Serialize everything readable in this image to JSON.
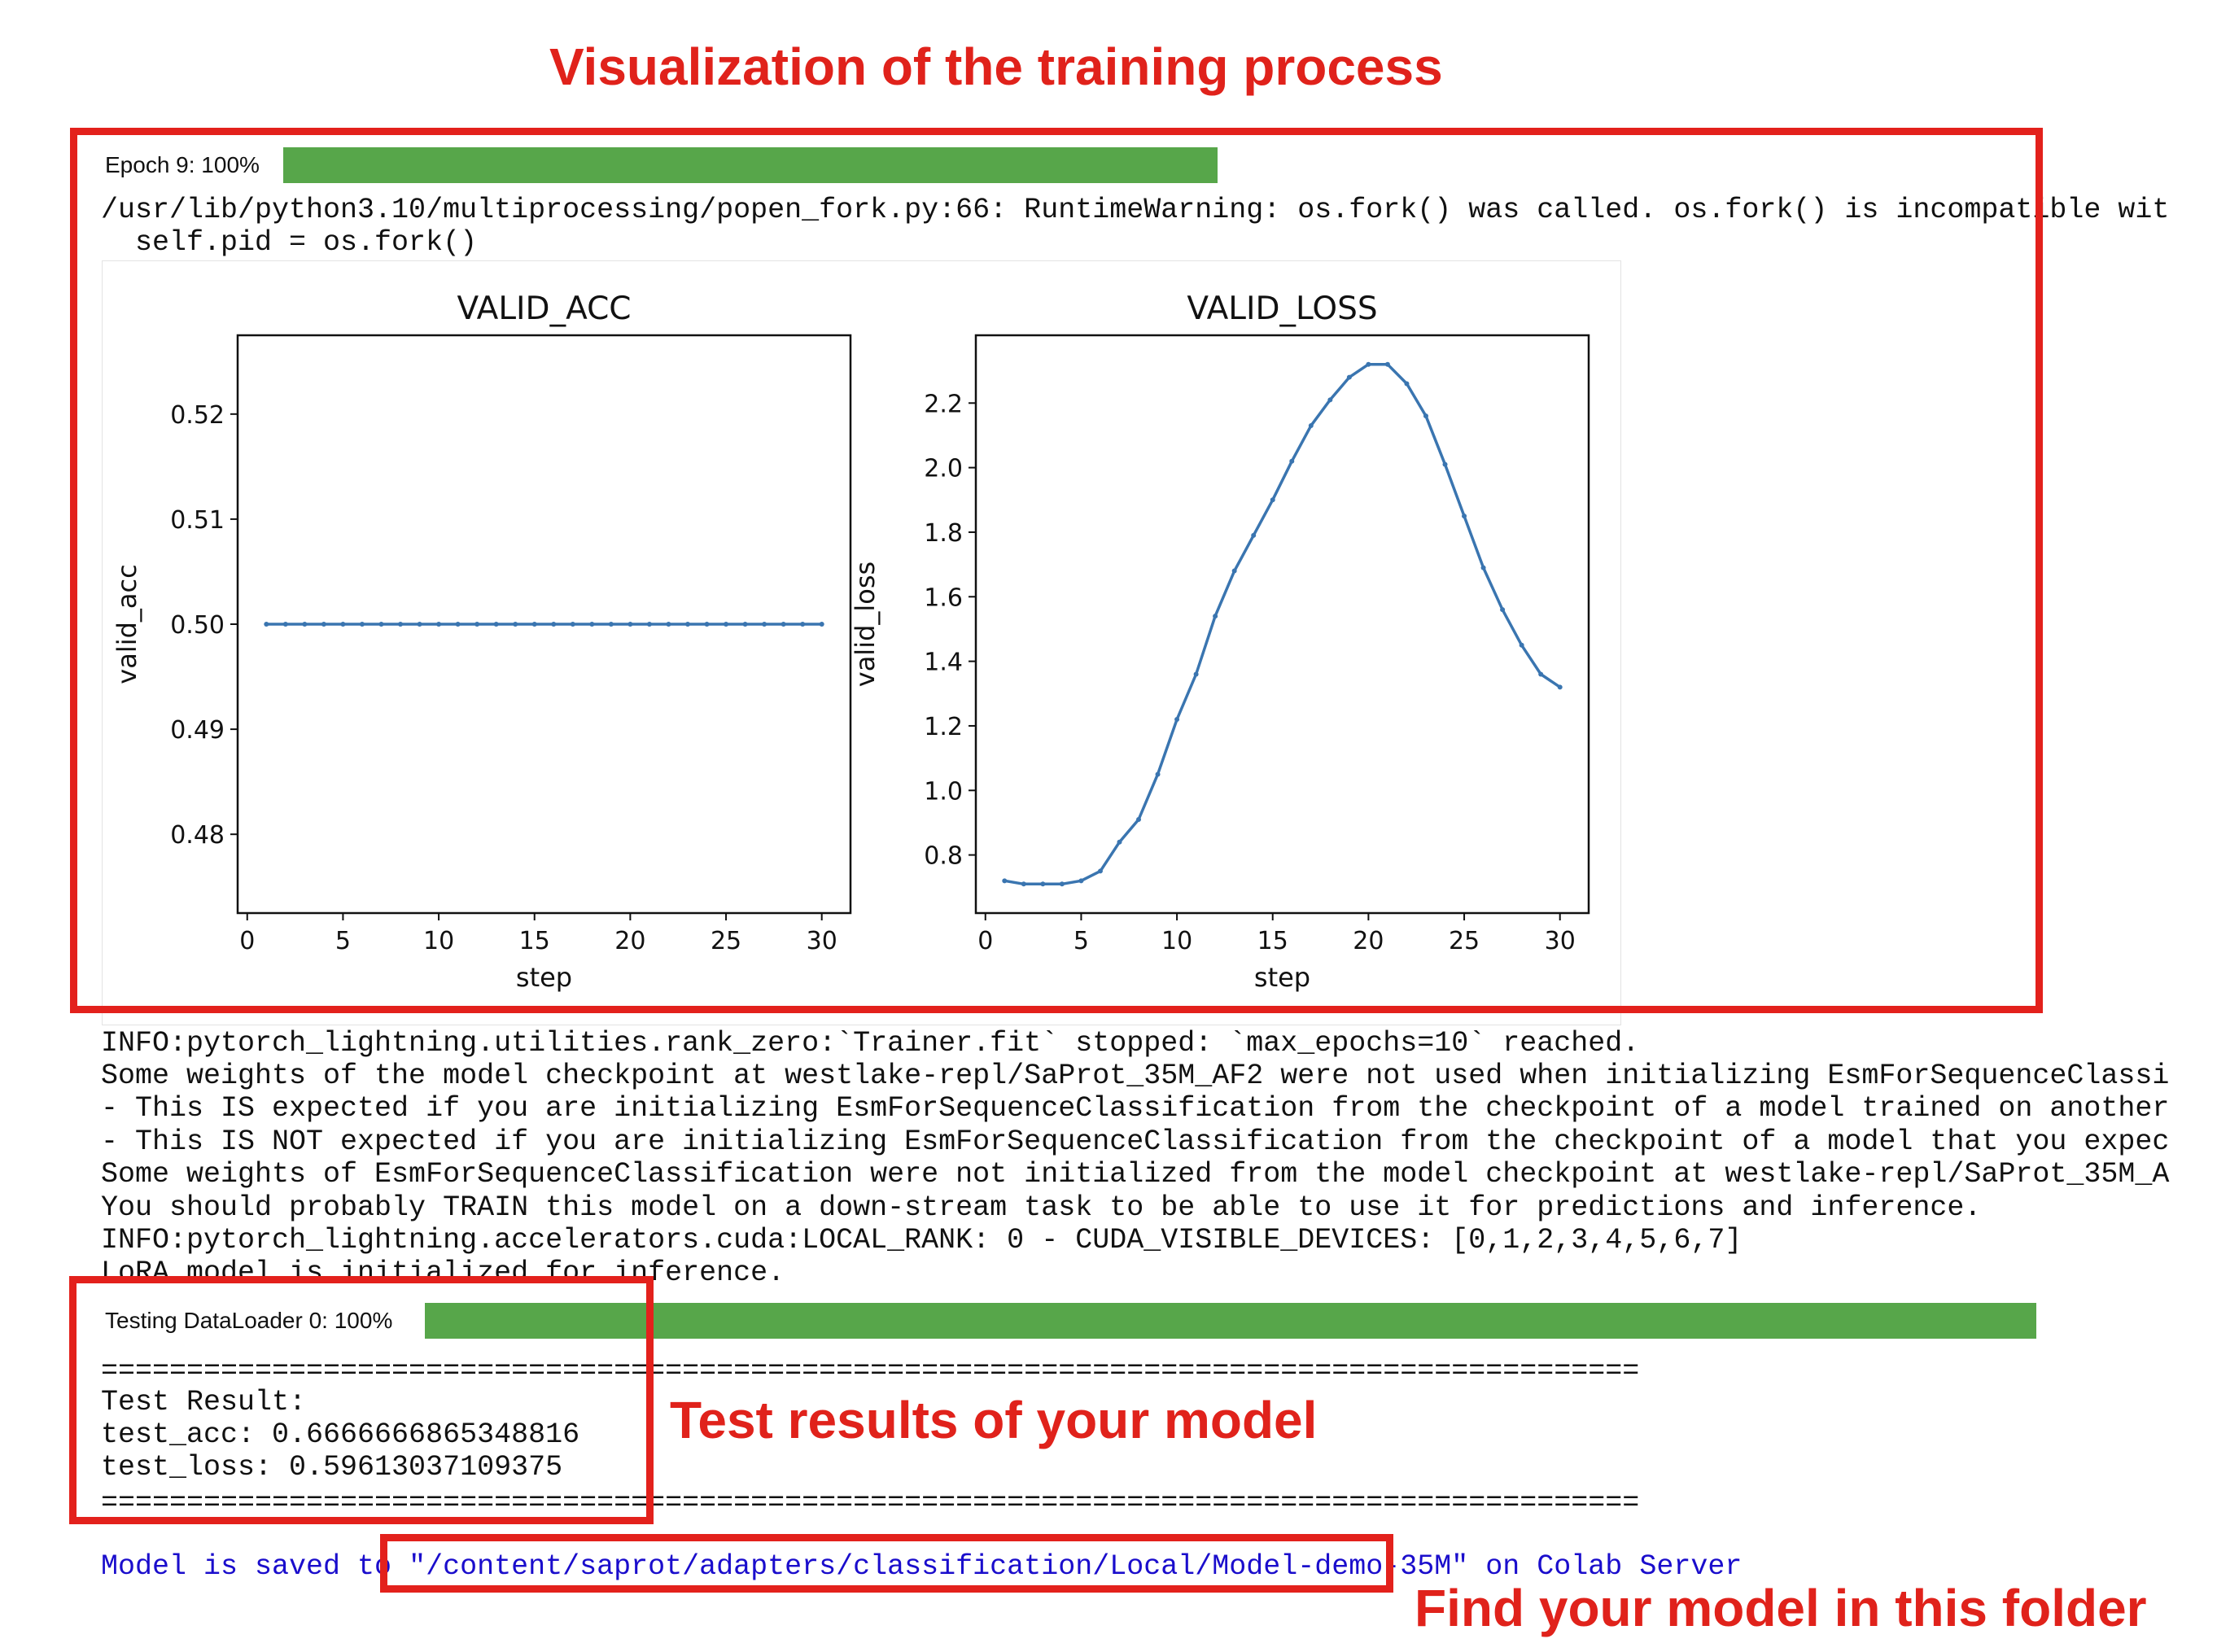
{
  "annotations": {
    "top_title": "Visualization of the training process",
    "test_results": "Test results of your model",
    "find_model": "Find your model in this folder"
  },
  "epoch_progress": {
    "label": "Epoch 9: 100%",
    "progress": 1.0
  },
  "warning_lines": [
    "/usr/lib/python3.10/multiprocessing/popen_fork.py:66: RuntimeWarning: os.fork() was called. os.fork() is incompatible wit",
    "  self.pid = os.fork()"
  ],
  "log_lines": [
    "INFO:pytorch_lightning.utilities.rank_zero:`Trainer.fit` stopped: `max_epochs=10` reached.",
    "Some weights of the model checkpoint at westlake-repl/SaProt_35M_AF2 were not used when initializing EsmForSequenceClassi",
    "- This IS expected if you are initializing EsmForSequenceClassification from the checkpoint of a model trained on another",
    "- This IS NOT expected if you are initializing EsmForSequenceClassification from the checkpoint of a model that you expec",
    "Some weights of EsmForSequenceClassification were not initialized from the model checkpoint at westlake-repl/SaProt_35M_A",
    "You should probably TRAIN this model on a down-stream task to be able to use it for predictions and inference.",
    "INFO:pytorch_lightning.accelerators.cuda:LOCAL_RANK: 0 - CUDA_VISIBLE_DEVICES: [0,1,2,3,4,5,6,7]",
    "LoRA model is initialized for inference."
  ],
  "test_progress": {
    "label": "Testing DataLoader 0: 100%",
    "progress": 1.0
  },
  "test_result": {
    "separator": "==========================================================================================",
    "heading": "Test Result:",
    "acc_line": "test_acc: 0.6666666865348816",
    "loss_line": "test_loss: 0.59613037109375"
  },
  "saved": {
    "prefix": "Model is saved to ",
    "path": "\"/content/saprot/adapters/classification/Local/Model-demo-35M\"",
    "suffix": " on Colab Server"
  },
  "colors": {
    "line": "#3a75b0",
    "progress": "#57a64a",
    "annotation": "#e3211c"
  },
  "chart_data": [
    {
      "type": "line",
      "title": "VALID_ACC",
      "xlabel": "step",
      "ylabel": "valid_acc",
      "xlim": [
        -0.5,
        31.5
      ],
      "ylim": [
        0.4725,
        0.5275
      ],
      "xticks": [
        0,
        5,
        10,
        15,
        20,
        25,
        30
      ],
      "yticks": [
        0.48,
        0.49,
        0.5,
        0.51,
        0.52
      ],
      "ytick_labels": [
        "0.48",
        "0.49",
        "0.50",
        "0.51",
        "0.52"
      ],
      "x": [
        1,
        2,
        3,
        4,
        5,
        6,
        7,
        8,
        9,
        10,
        11,
        12,
        13,
        14,
        15,
        16,
        17,
        18,
        19,
        20,
        21,
        22,
        23,
        24,
        25,
        26,
        27,
        28,
        29,
        30
      ],
      "y": [
        0.5,
        0.5,
        0.5,
        0.5,
        0.5,
        0.5,
        0.5,
        0.5,
        0.5,
        0.5,
        0.5,
        0.5,
        0.5,
        0.5,
        0.5,
        0.5,
        0.5,
        0.5,
        0.5,
        0.5,
        0.5,
        0.5,
        0.5,
        0.5,
        0.5,
        0.5,
        0.5,
        0.5,
        0.5,
        0.5
      ],
      "grid": false
    },
    {
      "type": "line",
      "title": "VALID_LOSS",
      "xlabel": "step",
      "ylabel": "valid_loss",
      "xlim": [
        -0.5,
        31.5
      ],
      "ylim": [
        0.62,
        2.41
      ],
      "xticks": [
        0,
        5,
        10,
        15,
        20,
        25,
        30
      ],
      "yticks": [
        0.8,
        1.0,
        1.2,
        1.4,
        1.6,
        1.8,
        2.0,
        2.2
      ],
      "ytick_labels": [
        "0.8",
        "1.0",
        "1.2",
        "1.4",
        "1.6",
        "1.8",
        "2.0",
        "2.2"
      ],
      "x": [
        1,
        2,
        3,
        4,
        5,
        6,
        7,
        8,
        9,
        10,
        11,
        12,
        13,
        14,
        15,
        16,
        17,
        18,
        19,
        20,
        21,
        22,
        23,
        24,
        25,
        26,
        27,
        28,
        29,
        30
      ],
      "y": [
        0.72,
        0.71,
        0.71,
        0.71,
        0.72,
        0.75,
        0.84,
        0.91,
        1.05,
        1.22,
        1.36,
        1.54,
        1.68,
        1.79,
        1.9,
        2.02,
        2.13,
        2.21,
        2.28,
        2.32,
        2.32,
        2.26,
        2.16,
        2.01,
        1.85,
        1.69,
        1.56,
        1.45,
        1.36,
        1.32
      ],
      "grid": false
    }
  ]
}
